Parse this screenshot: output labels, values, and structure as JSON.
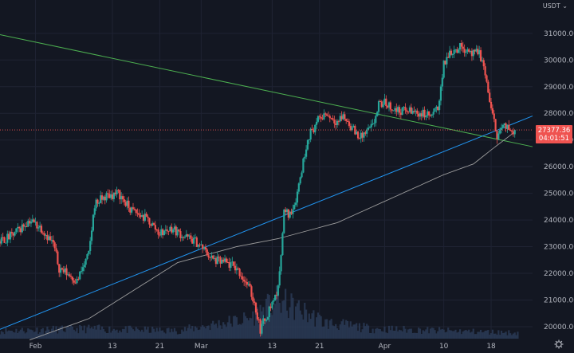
{
  "header": {
    "currency_label": "USDT",
    "currency_chevron": "⌄"
  },
  "icons": {
    "settings": "gear-icon"
  },
  "colors": {
    "background": "#131722",
    "grid": "#1f2333",
    "up_candle": "#26a69a",
    "down_candle": "#ef5350",
    "green_trendline": "#4caf50",
    "blue_trendline": "#2196f3",
    "moving_average": "#9e9e9e",
    "volume": "#2a3a55",
    "current_price_line": "#ef5350",
    "axis_text": "#b2b5be"
  },
  "chart_data": {
    "type": "candlestick",
    "x_tick_labels": [
      "Feb",
      "13",
      "21",
      "Mar",
      "13",
      "21",
      "Apr",
      "10",
      "18"
    ],
    "x_tick_days": [
      6,
      19,
      27,
      34,
      46,
      54,
      65,
      75,
      83
    ],
    "y_ticks": [
      20000,
      21000,
      22000,
      23000,
      24000,
      25000,
      26000,
      27000,
      28000,
      29000,
      30000,
      31000
    ],
    "y_tick_labels": [
      "20000.00",
      "21000.00",
      "22000.00",
      "23000.00",
      "24000.00",
      "25000.00",
      "26000.00",
      "27000.00",
      "28000.00",
      "29000.00",
      "30000.00",
      "31000.00"
    ],
    "ylim": [
      19550,
      32250
    ],
    "grid": true,
    "series": [
      {
        "name": "",
        "kind": "price",
        "points": [
          [
            0,
            23200
          ],
          [
            2,
            23400
          ],
          [
            5,
            24000
          ],
          [
            7,
            23700
          ],
          [
            9,
            23100
          ],
          [
            10,
            22200
          ],
          [
            12,
            21900
          ],
          [
            13,
            21700
          ],
          [
            15,
            22700
          ],
          [
            16,
            24600
          ],
          [
            18,
            24900
          ],
          [
            20,
            25000
          ],
          [
            22,
            24400
          ],
          [
            25,
            24000
          ],
          [
            27,
            23500
          ],
          [
            29,
            23700
          ],
          [
            31,
            23400
          ],
          [
            33,
            23200
          ],
          [
            34,
            23000
          ],
          [
            36,
            22500
          ],
          [
            38,
            22400
          ],
          [
            40,
            22200
          ],
          [
            42,
            21500
          ],
          [
            43,
            20900
          ],
          [
            44,
            19900
          ],
          [
            45,
            20400
          ],
          [
            46,
            20900
          ],
          [
            47,
            21400
          ],
          [
            48,
            24300
          ],
          [
            49,
            24200
          ],
          [
            50,
            24800
          ],
          [
            51,
            25900
          ],
          [
            52,
            27100
          ],
          [
            54,
            27800
          ],
          [
            55,
            28000
          ],
          [
            57,
            27700
          ],
          [
            58,
            27900
          ],
          [
            60,
            27300
          ],
          [
            61,
            27100
          ],
          [
            63,
            27500
          ],
          [
            64,
            28300
          ],
          [
            65,
            28400
          ],
          [
            67,
            28100
          ],
          [
            69,
            28100
          ],
          [
            71,
            28000
          ],
          [
            73,
            27900
          ],
          [
            74,
            28200
          ],
          [
            75,
            29800
          ],
          [
            76,
            30300
          ],
          [
            78,
            30500
          ],
          [
            79,
            30400
          ],
          [
            80,
            30200
          ],
          [
            81,
            30300
          ],
          [
            82,
            29500
          ],
          [
            83,
            28100
          ],
          [
            84,
            27200
          ],
          [
            85,
            27500
          ],
          [
            86,
            27400
          ],
          [
            87,
            27377
          ]
        ]
      },
      {
        "name": "",
        "kind": "moving_average",
        "points": [
          [
            5,
            19500
          ],
          [
            15,
            20300
          ],
          [
            30,
            22400
          ],
          [
            40,
            23000
          ],
          [
            47,
            23300
          ],
          [
            57,
            23900
          ],
          [
            67,
            24900
          ],
          [
            75,
            25700
          ],
          [
            80,
            26100
          ],
          [
            84,
            26800
          ],
          [
            87,
            27300
          ]
        ]
      }
    ],
    "trendlines": [
      {
        "name": "",
        "color_key": "green_trendline",
        "from": [
          0,
          30950
        ],
        "to": [
          90,
          26750
        ]
      },
      {
        "name": "",
        "color_key": "blue_trendline",
        "from": [
          0,
          19900
        ],
        "to": [
          90,
          27900
        ]
      }
    ],
    "volume_shape": [
      [
        0,
        0.2
      ],
      [
        15,
        0.25
      ],
      [
        30,
        0.2
      ],
      [
        42,
        0.5
      ],
      [
        47,
        0.95
      ],
      [
        51,
        0.7
      ],
      [
        55,
        0.4
      ],
      [
        63,
        0.25
      ],
      [
        75,
        0.2
      ],
      [
        87,
        0.15
      ]
    ],
    "current_price": {
      "value": 27377.36,
      "label": "27377.36",
      "countdown": "04:01:51"
    }
  }
}
